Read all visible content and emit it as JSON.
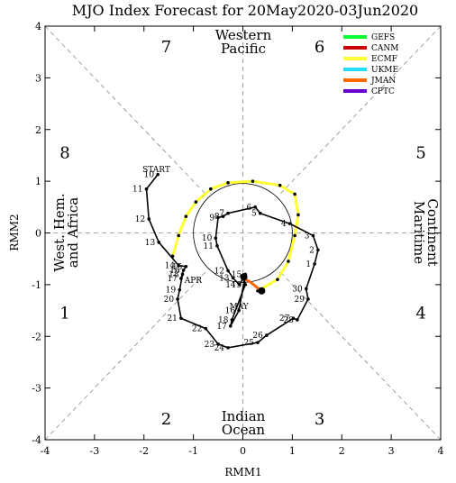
{
  "chart_data": {
    "type": "line",
    "title": "MJO Index Forecast for 20May2020-03Jun2020",
    "xlabel": "RMM1",
    "ylabel": "RMM2",
    "xlim": [
      -4,
      4
    ],
    "ylim": [
      -4,
      4
    ],
    "x_ticks": [
      "-4",
      "-3",
      "-2",
      "-1",
      "0",
      "1",
      "2",
      "3",
      "4"
    ],
    "y_ticks": [
      "-4",
      "-3",
      "-2",
      "-1",
      "0",
      "1",
      "2",
      "3",
      "4"
    ],
    "phase_labels": [
      {
        "text": "1",
        "x": -3.6,
        "y": -1.55
      },
      {
        "text": "2",
        "x": -1.55,
        "y": -3.6
      },
      {
        "text": "3",
        "x": 1.55,
        "y": -3.6
      },
      {
        "text": "4",
        "x": 3.6,
        "y": -1.55
      },
      {
        "text": "5",
        "x": 3.6,
        "y": 1.55
      },
      {
        "text": "6",
        "x": 1.55,
        "y": 3.6
      },
      {
        "text": "7",
        "x": -1.55,
        "y": 3.6
      },
      {
        "text": "8",
        "x": -3.6,
        "y": 1.55
      }
    ],
    "regions": {
      "top": [
        "Western",
        "Pacific"
      ],
      "bottom": [
        "Indian",
        "Ocean"
      ],
      "left": [
        "West. Hem.",
        "and Africa"
      ],
      "right": [
        "Maritime",
        "Continent"
      ]
    },
    "legend": [
      {
        "name": "GEFS",
        "color": "#00ff33"
      },
      {
        "name": "CANM",
        "color": "#cc0000"
      },
      {
        "name": "ECMF",
        "color": "#ffff33"
      },
      {
        "name": "UKME",
        "color": "#22ddff"
      },
      {
        "name": "JMAN",
        "color": "#ff6600"
      },
      {
        "name": "CPTC",
        "color": "#6600cc"
      }
    ],
    "observed": {
      "color": "#000000",
      "labels": [
        {
          "text": "START",
          "x": -1.75,
          "y": 1.25,
          "anchor": "middle"
        },
        {
          "text": "APR",
          "x": -1.18,
          "y": -0.9,
          "anchor": "start"
        },
        {
          "text": "MAY",
          "x": -0.08,
          "y": -1.4,
          "anchor": "middle"
        }
      ],
      "points": [
        {
          "x": -1.72,
          "y": 1.13,
          "day": "10"
        },
        {
          "x": -1.95,
          "y": 0.85,
          "day": "11"
        },
        {
          "x": -1.9,
          "y": 0.27,
          "day": "12"
        },
        {
          "x": -1.7,
          "y": -0.18,
          "day": "13"
        },
        {
          "x": -1.3,
          "y": -0.63,
          "day": "14"
        },
        {
          "x": -1.15,
          "y": -0.65,
          "day": "15"
        },
        {
          "x": -1.2,
          "y": -0.72,
          "day": "16"
        },
        {
          "x": -1.25,
          "y": -0.88,
          "day": "17"
        },
        {
          "x": -1.22,
          "y": -0.8,
          "day": "18"
        },
        {
          "x": -1.28,
          "y": -1.1,
          "day": "19"
        },
        {
          "x": -1.32,
          "y": -1.28,
          "day": "20"
        },
        {
          "x": -1.25,
          "y": -1.65,
          "day": "21"
        },
        {
          "x": -0.75,
          "y": -1.85,
          "day": "22"
        },
        {
          "x": -0.5,
          "y": -2.15,
          "day": "23"
        },
        {
          "x": -0.3,
          "y": -2.22,
          "day": "24"
        },
        {
          "x": 0.3,
          "y": -2.12,
          "day": "25"
        },
        {
          "x": 0.48,
          "y": -1.98,
          "day": "26"
        },
        {
          "x": 1.02,
          "y": -1.65,
          "day": "27"
        },
        {
          "x": 1.1,
          "y": -1.68,
          "day": "28"
        },
        {
          "x": 1.32,
          "y": -1.28,
          "day": "29"
        },
        {
          "x": 1.28,
          "y": -1.08,
          "day": "30"
        },
        {
          "x": 1.45,
          "y": -0.6,
          "day": "1"
        },
        {
          "x": 1.52,
          "y": -0.33,
          "day": "2"
        },
        {
          "x": 1.42,
          "y": -0.05,
          "day": "3"
        },
        {
          "x": 0.95,
          "y": 0.18,
          "day": "4"
        },
        {
          "x": 0.35,
          "y": 0.38,
          "day": "5"
        },
        {
          "x": 0.25,
          "y": 0.5,
          "day": "6"
        },
        {
          "x": -0.3,
          "y": 0.38,
          "day": "7"
        },
        {
          "x": -0.4,
          "y": 0.32,
          "day": "8"
        },
        {
          "x": -0.5,
          "y": 0.3,
          "day": "9"
        },
        {
          "x": -0.55,
          "y": -0.1,
          "day": "10"
        },
        {
          "x": -0.52,
          "y": -0.25,
          "day": "11"
        },
        {
          "x": -0.3,
          "y": -0.73,
          "day": "12"
        },
        {
          "x": -0.2,
          "y": -0.87,
          "day": "13"
        },
        {
          "x": -0.07,
          "y": -1.0,
          "day": "14"
        },
        {
          "x": 0.05,
          "y": -0.8,
          "day": "15"
        },
        {
          "x": -0.08,
          "y": -1.5,
          "day": "16"
        },
        {
          "x": -0.25,
          "y": -1.8,
          "day": "17"
        },
        {
          "x": -0.22,
          "y": -1.68,
          "day": "18"
        },
        {
          "x": 0.05,
          "y": -1.0,
          "day": "19"
        },
        {
          "x": 0.02,
          "y": -0.85,
          "day": ""
        }
      ]
    },
    "forecast_ecmf": {
      "color": "#ffff33",
      "points": [
        {
          "x": 0.3,
          "y": -1.12
        },
        {
          "x": 0.7,
          "y": -0.9
        },
        {
          "x": 0.92,
          "y": -0.55
        },
        {
          "x": 1.05,
          "y": -0.05
        },
        {
          "x": 1.12,
          "y": 0.35
        },
        {
          "x": 1.05,
          "y": 0.75
        },
        {
          "x": 0.75,
          "y": 0.92
        },
        {
          "x": 0.2,
          "y": 1.0
        },
        {
          "x": -0.3,
          "y": 0.97
        },
        {
          "x": -0.65,
          "y": 0.85
        },
        {
          "x": -0.95,
          "y": 0.6
        },
        {
          "x": -1.15,
          "y": 0.32
        },
        {
          "x": -1.3,
          "y": -0.05
        },
        {
          "x": -1.42,
          "y": -0.45
        }
      ]
    },
    "forecast_jman": {
      "color": "#ff6600",
      "points": [
        {
          "x": 0.02,
          "y": -0.88
        },
        {
          "x": 0.15,
          "y": -0.95
        },
        {
          "x": 0.28,
          "y": -1.05
        },
        {
          "x": 0.38,
          "y": -1.12
        }
      ]
    }
  }
}
